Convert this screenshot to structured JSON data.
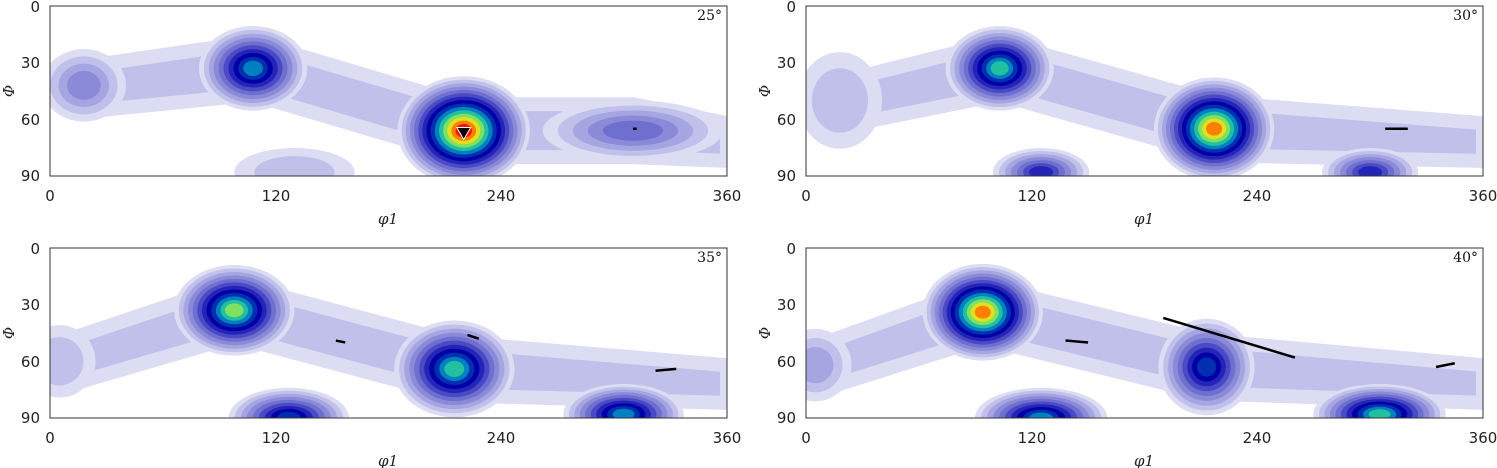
{
  "figure": {
    "background": "#ffffff"
  },
  "chart_data": [
    {
      "type": "heatmap",
      "panel": "25°",
      "corner_label": "25°",
      "xlabel": "φ1",
      "ylabel": "Φ",
      "xlim": [
        0,
        360
      ],
      "ylim": [
        0,
        90
      ],
      "y_inverted": true,
      "x_ticks": [
        "0",
        "120",
        "240",
        "360"
      ],
      "y_ticks": [
        "0",
        "30",
        "60",
        "90"
      ],
      "colormap": [
        "#ffffff",
        "#dcdcf2",
        "#c0c0eb",
        "#a5a5e2",
        "#8a8ad8",
        "#6f6fcf",
        "#4a4ac6",
        "#2424b8",
        "#0000a6",
        "#0030b0",
        "#0080c0",
        "#20c0a0",
        "#80e060",
        "#e0e020",
        "#ff8000",
        "#ff1010"
      ],
      "peaks": [
        {
          "phi1": 18,
          "Phi": 42,
          "level": 4,
          "spread_x": 14,
          "spread_y": 12
        },
        {
          "phi1": 108,
          "Phi": 33,
          "level": 10,
          "spread_x": 18,
          "spread_y": 14
        },
        {
          "phi1": 220,
          "Phi": 66,
          "level": 15,
          "spread_x": 22,
          "spread_y": 18
        },
        {
          "phi1": 310,
          "Phi": 66,
          "level": 5,
          "spread_x": 30,
          "spread_y": 10
        },
        {
          "phi1": 130,
          "Phi": 88,
          "level": 2,
          "spread_x": 20,
          "spread_y": 8
        }
      ],
      "marker": {
        "phi1": 220,
        "Phi": 67,
        "shape": "triangle-down"
      },
      "segments": [
        {
          "from": [
            310,
            65
          ],
          "to": [
            312,
            65
          ]
        }
      ]
    },
    {
      "type": "heatmap",
      "panel": "30°",
      "corner_label": "30°",
      "xlabel": "φ1",
      "ylabel": "Φ",
      "xlim": [
        0,
        360
      ],
      "ylim": [
        0,
        90
      ],
      "y_inverted": true,
      "x_ticks": [
        "0",
        "120",
        "240",
        "360"
      ],
      "y_ticks": [
        "0",
        "30",
        "60",
        "90"
      ],
      "peaks": [
        {
          "phi1": 103,
          "Phi": 33,
          "level": 11,
          "spread_x": 18,
          "spread_y": 14
        },
        {
          "phi1": 217,
          "Phi": 65,
          "level": 14,
          "spread_x": 20,
          "spread_y": 17
        },
        {
          "phi1": 18,
          "Phi": 50,
          "level": 2,
          "spread_x": 14,
          "spread_y": 16
        },
        {
          "phi1": 125,
          "Phi": 88,
          "level": 7,
          "spread_x": 16,
          "spread_y": 8
        },
        {
          "phi1": 300,
          "Phi": 88,
          "level": 7,
          "spread_x": 16,
          "spread_y": 8
        }
      ],
      "segments": [
        {
          "from": [
            308,
            65
          ],
          "to": [
            320,
            65
          ]
        }
      ]
    },
    {
      "type": "heatmap",
      "panel": "35°",
      "corner_label": "35°",
      "xlabel": "φ1",
      "ylabel": "Φ",
      "xlim": [
        0,
        360
      ],
      "ylim": [
        0,
        90
      ],
      "y_inverted": true,
      "x_ticks": [
        "0",
        "120",
        "240",
        "360"
      ],
      "y_ticks": [
        "0",
        "30",
        "60",
        "90"
      ],
      "peaks": [
        {
          "phi1": 98,
          "Phi": 33,
          "level": 12,
          "spread_x": 20,
          "spread_y": 15
        },
        {
          "phi1": 215,
          "Phi": 64,
          "level": 11,
          "spread_x": 20,
          "spread_y": 16
        },
        {
          "phi1": 127,
          "Phi": 90,
          "level": 9,
          "spread_x": 20,
          "spread_y": 10
        },
        {
          "phi1": 305,
          "Phi": 88,
          "level": 10,
          "spread_x": 20,
          "spread_y": 10
        },
        {
          "phi1": 5,
          "Phi": 60,
          "level": 2,
          "spread_x": 12,
          "spread_y": 12
        }
      ],
      "segments": [
        {
          "from": [
            152,
            49
          ],
          "to": [
            157,
            50
          ]
        },
        {
          "from": [
            222,
            46
          ],
          "to": [
            228,
            48
          ]
        },
        {
          "from": [
            322,
            65
          ],
          "to": [
            333,
            64
          ]
        }
      ]
    },
    {
      "type": "heatmap",
      "panel": "40°",
      "corner_label": "40°",
      "xlabel": "φ1",
      "ylabel": "Φ",
      "xlim": [
        0,
        360
      ],
      "ylim": [
        0,
        90
      ],
      "y_inverted": true,
      "x_ticks": [
        "0",
        "120",
        "240",
        "360"
      ],
      "y_ticks": [
        "0",
        "30",
        "60",
        "90"
      ],
      "peaks": [
        {
          "phi1": 94,
          "Phi": 34,
          "level": 14,
          "spread_x": 20,
          "spread_y": 16
        },
        {
          "phi1": 213,
          "Phi": 63,
          "level": 9,
          "spread_x": 16,
          "spread_y": 16
        },
        {
          "phi1": 125,
          "Phi": 90,
          "level": 10,
          "spread_x": 22,
          "spread_y": 10
        },
        {
          "phi1": 305,
          "Phi": 88,
          "level": 11,
          "spread_x": 22,
          "spread_y": 10
        },
        {
          "phi1": 5,
          "Phi": 62,
          "level": 3,
          "spread_x": 12,
          "spread_y": 12
        }
      ],
      "segments": [
        {
          "from": [
            138,
            49
          ],
          "to": [
            150,
            50
          ]
        },
        {
          "from": [
            190,
            37
          ],
          "to": [
            260,
            58
          ]
        },
        {
          "from": [
            335,
            63
          ],
          "to": [
            345,
            61
          ]
        }
      ]
    }
  ]
}
